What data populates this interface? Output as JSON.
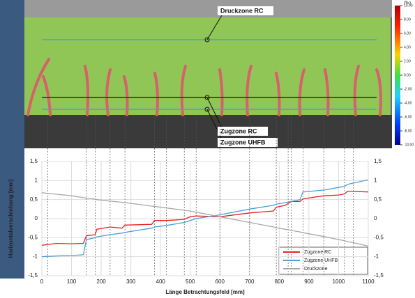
{
  "image": {
    "labels": [
      "Druckzone RC",
      "Zugzone RC",
      "Zugzone UHFB"
    ],
    "colorbar": {
      "unit": "(‰)",
      "lim": [
        -10,
        10
      ],
      "ticks": [
        {
          "value": 10,
          "label": "10.00"
        },
        {
          "value": 8,
          "label": "8.00"
        },
        {
          "value": 6,
          "label": "6.00"
        },
        {
          "value": 4,
          "label": "4.00"
        },
        {
          "value": 2,
          "label": "2.00"
        },
        {
          "value": 0,
          "label": "0.00"
        },
        {
          "value": -2,
          "label": "-2.00"
        },
        {
          "value": -4,
          "label": "-4.00"
        },
        {
          "value": -6,
          "label": "-6.00"
        },
        {
          "value": -8,
          "label": "-8.00"
        },
        {
          "value": -10,
          "label": "-10.00"
        }
      ]
    }
  },
  "chart_data": {
    "type": "line",
    "xlabel": "Länge Betrachtungsfeld [mm]",
    "ylabel": "Horizontalverschiebung [mm]",
    "x": [
      0,
      50,
      100,
      140,
      150,
      180,
      185,
      230,
      270,
      280,
      370,
      380,
      420,
      480,
      500,
      520,
      600,
      700,
      780,
      790,
      820,
      840,
      870,
      880,
      950,
      1000,
      1020,
      1030,
      1100
    ],
    "series": [
      {
        "name": "Zugzone RC",
        "color": "#e8202a",
        "values": [
          -0.7,
          -0.65,
          -0.66,
          -0.65,
          -0.45,
          -0.42,
          -0.28,
          -0.22,
          -0.25,
          -0.17,
          -0.15,
          -0.05,
          -0.05,
          -0.02,
          0.05,
          0.07,
          0.05,
          0.15,
          0.2,
          0.3,
          0.35,
          0.45,
          0.45,
          0.52,
          0.6,
          0.62,
          0.65,
          0.72,
          0.7
        ]
      },
      {
        "name": "Zugzone UHFB",
        "color": "#4a9fd8",
        "values": [
          -1.0,
          -0.98,
          -0.97,
          -0.95,
          -0.55,
          -0.5,
          -0.48,
          -0.42,
          -0.38,
          -0.36,
          -0.25,
          -0.22,
          -0.18,
          -0.1,
          -0.05,
          0.0,
          0.1,
          0.25,
          0.35,
          0.38,
          0.42,
          0.45,
          0.5,
          0.7,
          0.75,
          0.82,
          0.85,
          0.9,
          1.02
        ]
      },
      {
        "name": "Druckzone",
        "color": "#a8a8a8",
        "values": [
          0.68,
          0.64,
          0.6,
          0.55,
          0.54,
          0.51,
          0.5,
          0.46,
          0.43,
          0.42,
          0.33,
          0.32,
          0.28,
          0.22,
          0.2,
          0.17,
          0.05,
          -0.1,
          -0.22,
          -0.24,
          -0.28,
          -0.31,
          -0.35,
          -0.37,
          -0.47,
          -0.55,
          -0.58,
          -0.6,
          -0.72
        ]
      }
    ],
    "vlines": [
      20,
      150,
      180,
      230,
      280,
      380,
      420,
      480,
      520,
      600,
      700,
      790,
      830,
      840,
      880,
      950,
      1020,
      1050
    ],
    "xlim": [
      0,
      1100
    ],
    "xticks": [
      0,
      100,
      200,
      300,
      400,
      500,
      600,
      700,
      800,
      900,
      1000,
      1100
    ],
    "ylim": [
      -1.5,
      1.5
    ],
    "yticks": [
      {
        "value": 1.5,
        "label": "1,5"
      },
      {
        "value": 1,
        "label": "1"
      },
      {
        "value": 0.5,
        "label": "0,5"
      },
      {
        "value": 0,
        "label": "0"
      },
      {
        "value": -0.5,
        "label": "-0,5"
      },
      {
        "value": -1,
        "label": "-1"
      },
      {
        "value": -1.5,
        "label": "-1,5"
      }
    ],
    "grid": true,
    "legend": "lower right"
  }
}
